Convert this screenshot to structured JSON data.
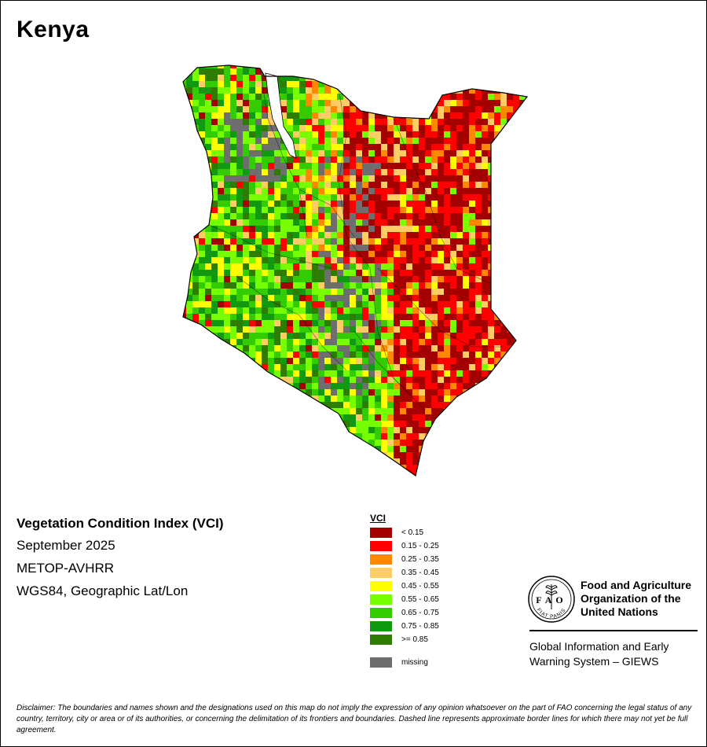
{
  "map": {
    "country": "Kenya",
    "index_name": "Vegetation Condition Index (VCI)",
    "period": "September 2025",
    "sensor": "METOP-AVHRR",
    "projection": "WGS84, Geographic Lat/Lon"
  },
  "legend": {
    "title": "VCI",
    "classes": [
      {
        "label": "< 0.15",
        "color": "#a50000"
      },
      {
        "label": "0.15 - 0.25",
        "color": "#ff0000"
      },
      {
        "label": "0.25 - 0.35",
        "color": "#ff8800"
      },
      {
        "label": "0.35 - 0.45",
        "color": "#ffcc66"
      },
      {
        "label": "0.45 - 0.55",
        "color": "#ffff00"
      },
      {
        "label": "0.55 - 0.65",
        "color": "#77ff00"
      },
      {
        "label": "0.65 - 0.75",
        "color": "#33cc00"
      },
      {
        "label": "0.75 - 0.85",
        "color": "#119911"
      },
      {
        "label": ">= 0.85",
        "color": "#2e7d00"
      }
    ],
    "missing": {
      "label": "missing",
      "color": "#6e6e6e"
    }
  },
  "organization": {
    "name_lines": [
      "Food and Agriculture",
      "Organization of the",
      "United Nations"
    ],
    "logo_letters": "FAO",
    "motto": "FIAT PANIS"
  },
  "program": {
    "lines": [
      "Global Information and Early",
      "Warning System – GIEWS"
    ]
  },
  "disclaimer": "Disclaimer: The boundaries and names shown and the designations used on this map do not imply the expression of any opinion whatsoever on the part of FAO concerning the legal status of any country, territory, city or area or of its authorities, or concerning the delimitation of its frontiers and boundaries. Dashed line represents approximate border lines for which there may not yet be full agreement."
}
